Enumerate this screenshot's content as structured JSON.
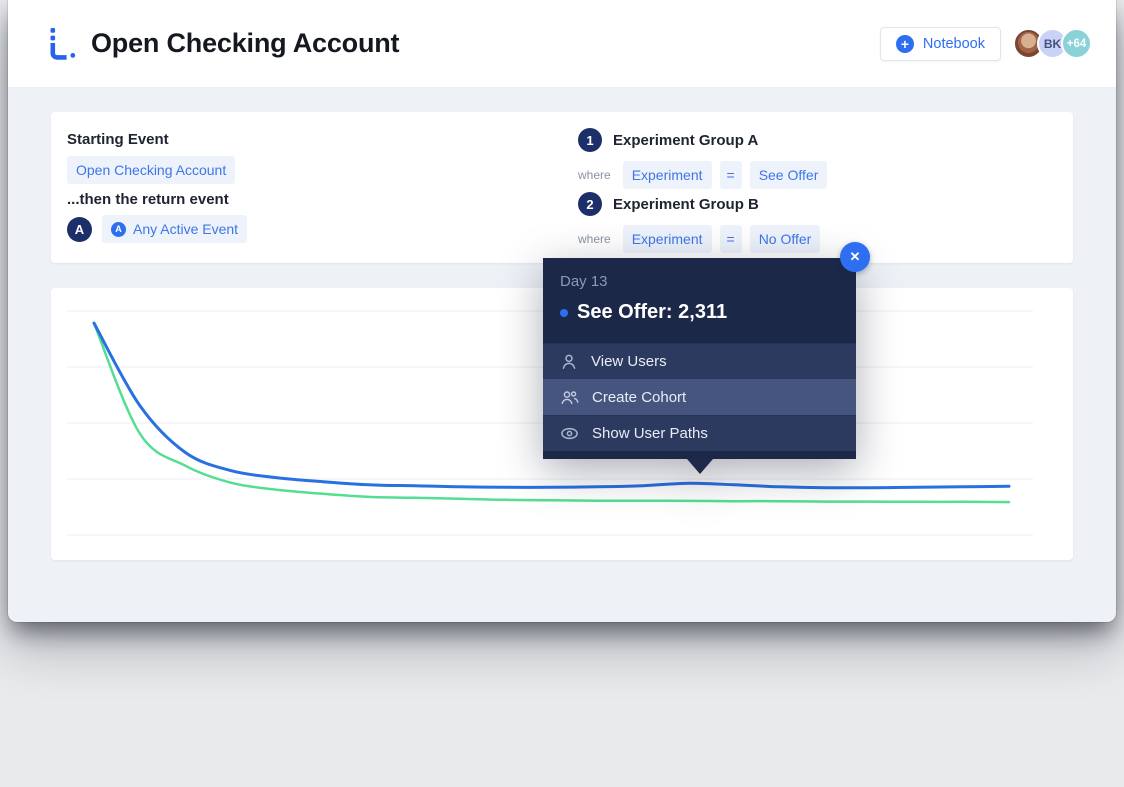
{
  "header": {
    "title": "Open Checking Account",
    "notebook_button": "Notebook",
    "plus_glyph": "+",
    "avatars": {
      "bk": "BK",
      "more": "+64"
    }
  },
  "setup_panel": {
    "starting_event_label": "Starting Event",
    "starting_event_value": "Open Checking Account",
    "return_event_label": "...then the return event",
    "return_event_badge": "A",
    "return_event_icon_glyph": "A",
    "return_event_value": "Any Active Event",
    "groups": [
      {
        "index": "1",
        "name": "Experiment Group A",
        "where_label": "where",
        "property": "Experiment",
        "operator": "=",
        "value": "See Offer"
      },
      {
        "index": "2",
        "name": "Experiment Group B",
        "where_label": "where",
        "property": "Experiment",
        "operator": "=",
        "value": "No Offer"
      }
    ]
  },
  "tooltip": {
    "day_label": "Day 13",
    "headline": "See Offer: 2,311",
    "series": "See Offer",
    "value": "2,311",
    "close_glyph": "✕",
    "menu": [
      {
        "label": "View Users",
        "icon": "user-icon",
        "highlighted": false
      },
      {
        "label": "Create Cohort",
        "icon": "users-icon",
        "highlighted": true
      },
      {
        "label": "Show User Paths",
        "icon": "eye-icon",
        "highlighted": false
      }
    ]
  },
  "chart_data": {
    "type": "line",
    "title": "",
    "xlabel": "",
    "ylabel": "",
    "x": [
      0,
      1,
      2,
      3,
      4,
      5,
      6,
      7,
      8,
      9,
      10,
      11,
      12,
      13,
      14,
      15,
      16,
      17,
      18,
      19,
      20
    ],
    "series": [
      {
        "name": "See Offer",
        "color": "#2970e0",
        "values": [
          9460,
          5780,
          3680,
          2870,
          2560,
          2380,
          2240,
          2200,
          2150,
          2130,
          2130,
          2150,
          2200,
          2311,
          2240,
          2150,
          2110,
          2110,
          2130,
          2150,
          2180
        ]
      },
      {
        "name": "No Offer",
        "color": "#55dd92",
        "values": [
          9460,
          4530,
          3090,
          2330,
          2020,
          1840,
          1700,
          1660,
          1620,
          1570,
          1550,
          1530,
          1530,
          1524,
          1510,
          1510,
          1490,
          1490,
          1480,
          1480,
          1470
        ]
      }
    ],
    "ylim": [
      0,
      10000
    ],
    "xlim": [
      0,
      20
    ],
    "gridlines": 5,
    "grid": true,
    "legend_position": "none",
    "highlight": {
      "x": 13,
      "series": "See Offer",
      "value": 2311
    }
  },
  "colors": {
    "accent_blue": "#2e6ff2",
    "line_blue": "#2970e0",
    "line_green": "#55dd92",
    "badge_navy": "#1d2f69",
    "tooltip_bg": "#1c2847",
    "tooltip_row": "#2c3a60",
    "tooltip_row_highlight": "#46557f",
    "chip_bg": "#edf2fb",
    "chip_text": "#3e76e8",
    "grid_line": "#eceef1",
    "content_bg": "#eef1f6"
  }
}
